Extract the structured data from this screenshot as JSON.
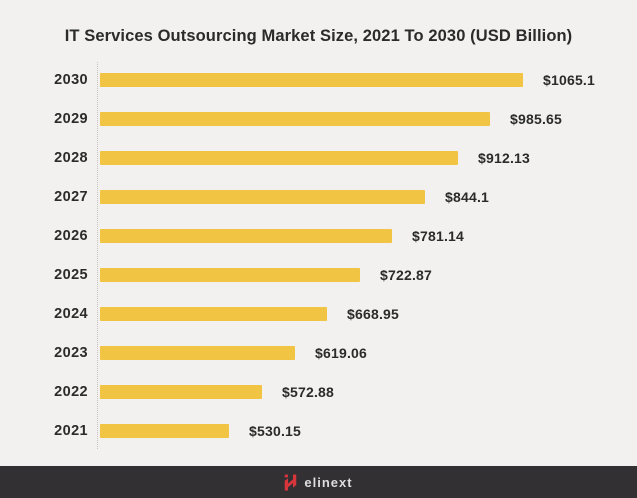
{
  "page": {
    "background_color": "#F2F1F0",
    "text_color": "#2B2B2B"
  },
  "chart_data": {
    "type": "bar",
    "orientation": "horizontal",
    "title": "IT Services Outsourcing Market Size, 2021 To 2030 (USD Billion)",
    "unit": "USD Billion",
    "categories": [
      "2030",
      "2029",
      "2028",
      "2027",
      "2026",
      "2025",
      "2024",
      "2023",
      "2022",
      "2021"
    ],
    "values": [
      1065.1,
      985.65,
      912.13,
      844.1,
      781.14,
      722.87,
      668.95,
      619.06,
      572.88,
      530.15
    ],
    "value_labels": [
      "$1065.1",
      "$985.65",
      "$912.13",
      "$844.1",
      "$781.14",
      "$722.87",
      "$668.95",
      "$619.06",
      "$572.88",
      "$530.15"
    ],
    "xlabel": "",
    "ylabel": "",
    "legend": false,
    "grid": false,
    "axis_line": "dotted-vertical-left",
    "x_scale": "log",
    "x_baseline_value": 390,
    "x_max_value": 1065.1,
    "bar_color": "#F1C443",
    "label_color": "#2B2B2B"
  },
  "footer": {
    "brand_text": "elinext",
    "logo_icon": "elinext-logo-icon",
    "background": "#323032",
    "text_color": "#DEDEDE",
    "icon_color": "#D8363C"
  }
}
